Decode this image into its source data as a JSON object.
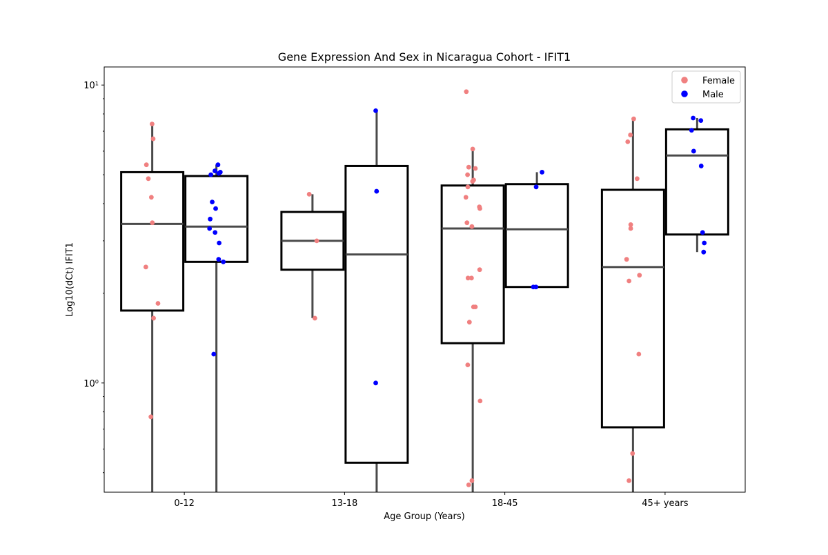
{
  "chart_data": {
    "type": "box",
    "title": "Gene Expression And Sex in Nicaragua Cohort - IFIT1",
    "xlabel": "Age Group (Years)",
    "ylabel": "Log10(dCt) IFIT1",
    "yscale": "log",
    "ylim": [
      0.43,
      11.5
    ],
    "yticks": [
      {
        "value": 1,
        "label": "10⁰"
      },
      {
        "value": 10,
        "label": "10¹"
      }
    ],
    "categories": [
      "0-12",
      "13-18",
      "18-45",
      "45+ years"
    ],
    "legend": {
      "placement": "top-right"
    },
    "series": [
      {
        "name": "Female",
        "color": "#f08080",
        "boxes": [
          {
            "category": "0-12",
            "whislo": 0.43,
            "q1": 1.75,
            "med": 3.42,
            "q3": 5.1,
            "whishi": 7.5
          },
          {
            "category": "13-18",
            "whislo": 1.65,
            "q1": 2.4,
            "med": 3.0,
            "q3": 3.75,
            "whishi": 4.3
          },
          {
            "category": "18-45",
            "whislo": 0.43,
            "q1": 1.36,
            "med": 3.3,
            "q3": 4.6,
            "whishi": 6.1
          },
          {
            "category": "45+ years",
            "whislo": 0.43,
            "q1": 0.71,
            "med": 2.45,
            "q3": 4.45,
            "whishi": 7.7
          }
        ],
        "points": [
          {
            "category": "0-12",
            "values": [
              7.4,
              6.6,
              5.4,
              4.85,
              4.2,
              3.45,
              2.45,
              1.85,
              1.65,
              0.77
            ]
          },
          {
            "category": "13-18",
            "values": [
              4.3,
              3.0,
              1.65
            ]
          },
          {
            "category": "18-45",
            "values": [
              9.5,
              6.1,
              5.3,
              5.25,
              5.0,
              4.8,
              4.75,
              4.55,
              4.2,
              3.9,
              3.85,
              3.45,
              3.35,
              2.4,
              2.25,
              2.25,
              1.8,
              1.8,
              1.6,
              1.15,
              0.87,
              0.47,
              0.455
            ]
          },
          {
            "category": "45+ years",
            "values": [
              7.7,
              6.8,
              6.45,
              4.85,
              3.4,
              3.3,
              2.6,
              2.3,
              2.2,
              1.25,
              0.58,
              0.47
            ]
          }
        ]
      },
      {
        "name": "Male",
        "color": "#0000ff",
        "boxes": [
          {
            "category": "0-12",
            "whislo": 0.43,
            "q1": 2.55,
            "med": 3.35,
            "q3": 4.95,
            "whishi": 5.4
          },
          {
            "category": "13-18",
            "whislo": 0.43,
            "q1": 0.54,
            "med": 2.7,
            "q3": 5.35,
            "whishi": 8.2
          },
          {
            "category": "18-45",
            "whislo": 2.1,
            "q1": 2.1,
            "med": 3.28,
            "q3": 4.65,
            "whishi": 5.1
          },
          {
            "category": "45+ years",
            "whislo": 2.75,
            "q1": 3.15,
            "med": 5.8,
            "q3": 7.1,
            "whishi": 7.75
          }
        ],
        "points": [
          {
            "category": "0-12",
            "values": [
              5.4,
              5.15,
              5.1,
              5.05,
              5.0,
              4.05,
              3.85,
              3.55,
              3.3,
              3.2,
              2.95,
              2.6,
              2.55,
              1.25
            ]
          },
          {
            "category": "13-18",
            "values": [
              8.2,
              4.4,
              1.0
            ]
          },
          {
            "category": "18-45",
            "values": [
              5.1,
              4.55,
              2.1,
              2.1
            ]
          },
          {
            "category": "45+ years",
            "values": [
              7.75,
              7.6,
              7.05,
              6.0,
              5.35,
              3.2,
              2.95,
              2.75
            ]
          }
        ]
      }
    ]
  }
}
